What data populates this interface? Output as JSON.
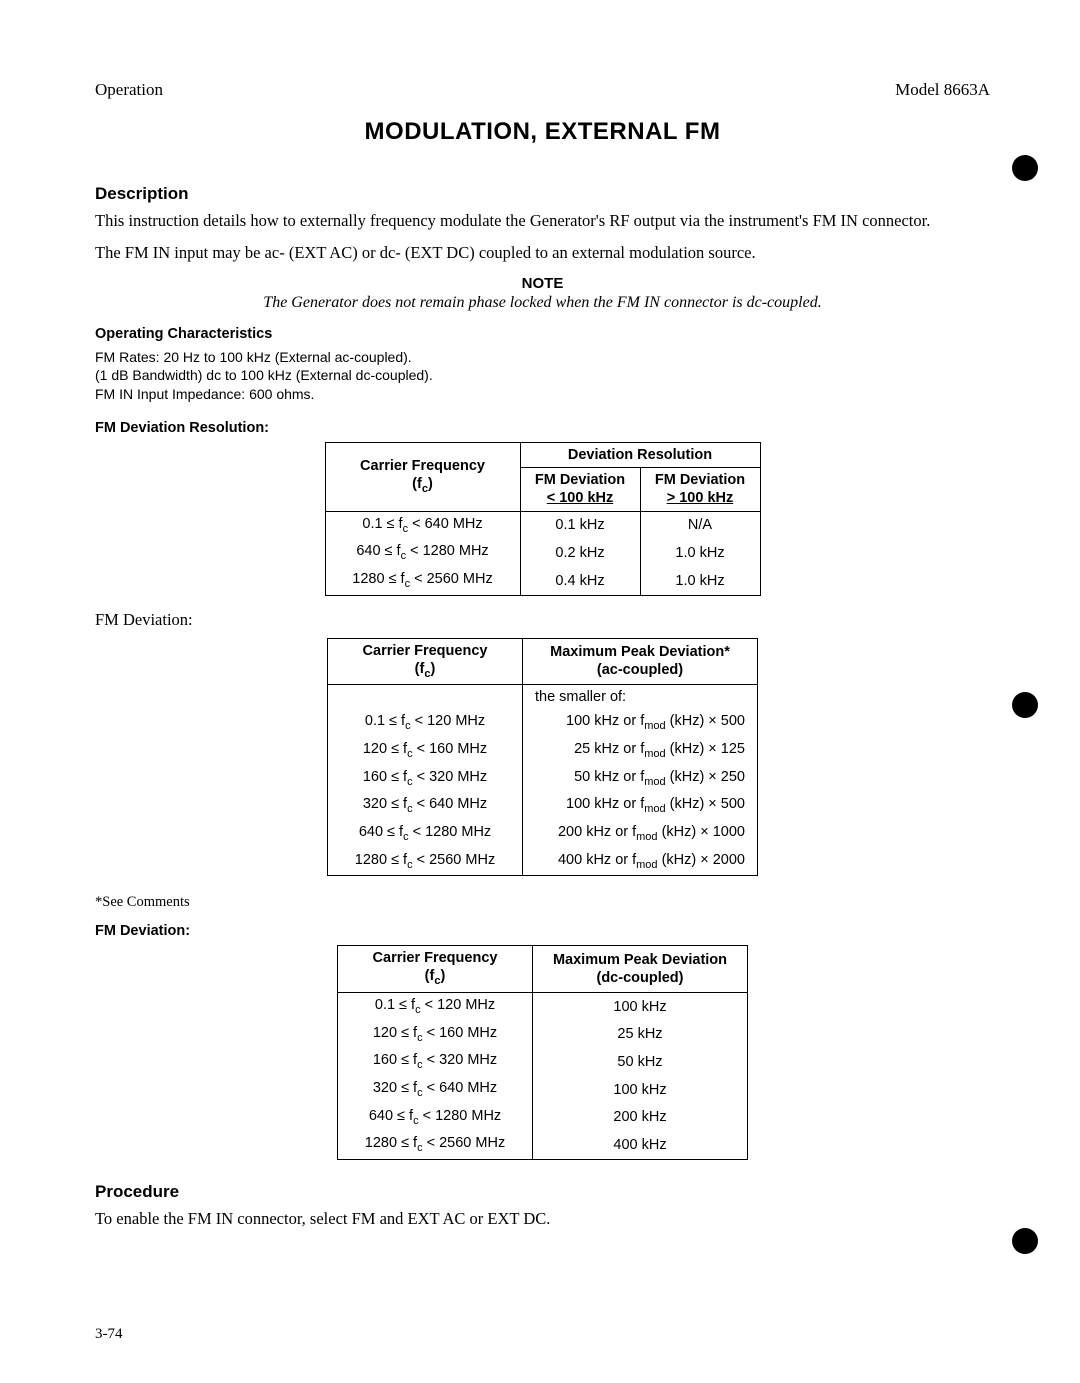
{
  "header": {
    "left": "Operation",
    "right": "Model 8663A"
  },
  "title": "MODULATION, EXTERNAL FM",
  "description": {
    "heading": "Description",
    "p1": "This instruction details how to externally frequency modulate the Generator's RF output via the instrument's FM IN connector.",
    "p2": "The FM IN input may be ac- (EXT AC) or dc- (EXT DC) coupled to an external modulation source.",
    "note_label": "NOTE",
    "note_text": "The Generator does not remain phase locked when the FM IN connector is dc-coupled."
  },
  "op_char": {
    "heading": "Operating Characteristics",
    "l1": "FM Rates: 20 Hz to 100 kHz (External ac-coupled).",
    "l2": "(1 dB Bandwidth) dc to 100 kHz (External dc-coupled).",
    "l3": "FM IN Input Impedance: 600 ohms."
  },
  "table1": {
    "heading": "FM Deviation Resolution:",
    "h_carrier_l1": "Carrier Frequency",
    "h_carrier_l2": "(f",
    "h_carrier_sub": "c",
    "h_carrier_l3": ")",
    "h_dev": "Deviation Resolution",
    "h_lt_l1": "FM Deviation",
    "h_lt_l2": "< 100 kHz",
    "h_gt_l1": "FM Deviation",
    "h_gt_l2": "> 100 kHz",
    "rows": [
      {
        "f": "0.1 ≤ f",
        "fsub": "c",
        "f2": " < 640 MHz",
        "lt": "0.1 kHz",
        "gt": "N/A"
      },
      {
        "f": "640 ≤ f",
        "fsub": "c",
        "f2": " < 1280 MHz",
        "lt": "0.2 kHz",
        "gt": "1.0 kHz"
      },
      {
        "f": "1280 ≤ f",
        "fsub": "c",
        "f2": " < 2560 MHz",
        "lt": "0.4 kHz",
        "gt": "1.0 kHz"
      }
    ]
  },
  "fm_dev_label": "FM Deviation:",
  "table2": {
    "h_carrier_l1": "Carrier Frequency",
    "h_carrier_l2": "(f",
    "h_carrier_sub": "c",
    "h_carrier_l3": ")",
    "h_max_l1": "Maximum Peak Deviation*",
    "h_max_l2": "(ac-coupled)",
    "lead": "the smaller of:",
    "rows": [
      {
        "f": "0.1 ≤ f",
        "fsub": "c",
        "f2": " < 120 MHz",
        "v1": "100 kHz or f",
        "vsub": "mod",
        "v2": " (kHz) × 500"
      },
      {
        "f": "120 ≤ f",
        "fsub": "c",
        "f2": " < 160 MHz",
        "v1": "25 kHz or f",
        "vsub": "mod",
        "v2": " (kHz) × 125"
      },
      {
        "f": "160 ≤ f",
        "fsub": "c",
        "f2": " < 320 MHz",
        "v1": "50 kHz or f",
        "vsub": "mod",
        "v2": " (kHz) × 250"
      },
      {
        "f": "320 ≤ f",
        "fsub": "c",
        "f2": " < 640 MHz",
        "v1": "100 kHz or f",
        "vsub": "mod",
        "v2": " (kHz) × 500"
      },
      {
        "f": "640 ≤ f",
        "fsub": "c",
        "f2": " < 1280 MHz",
        "v1": "200 kHz or f",
        "vsub": "mod",
        "v2": " (kHz) × 1000"
      },
      {
        "f": "1280 ≤ f",
        "fsub": "c",
        "f2": " < 2560 MHz",
        "v1": "400 kHz or f",
        "vsub": "mod",
        "v2": " (kHz) × 2000"
      }
    ]
  },
  "footnote": "*See Comments",
  "table3": {
    "heading": "FM Deviation:",
    "h_carrier_l1": "Carrier Frequency",
    "h_carrier_l2": "(f",
    "h_carrier_sub": "c",
    "h_carrier_l3": ")",
    "h_max_l1": "Maximum Peak Deviation",
    "h_max_l2": "(dc-coupled)",
    "rows": [
      {
        "f": "0.1 ≤ f",
        "fsub": "c",
        "f2": " < 120 MHz",
        "v": "100 kHz"
      },
      {
        "f": "120 ≤ f",
        "fsub": "c",
        "f2": " < 160 MHz",
        "v": "25 kHz"
      },
      {
        "f": "160 ≤ f",
        "fsub": "c",
        "f2": " < 320 MHz",
        "v": "50 kHz"
      },
      {
        "f": "320 ≤ f",
        "fsub": "c",
        "f2": " < 640 MHz",
        "v": "100 kHz"
      },
      {
        "f": "640 ≤ f",
        "fsub": "c",
        "f2": " < 1280 MHz",
        "v": "200 kHz"
      },
      {
        "f": "1280 ≤ f",
        "fsub": "c",
        "f2": " < 2560 MHz",
        "v": "400 kHz"
      }
    ]
  },
  "procedure": {
    "heading": "Procedure",
    "p1": "To enable the FM IN connector, select FM and EXT AC or EXT DC."
  },
  "page_number": "3-74"
}
